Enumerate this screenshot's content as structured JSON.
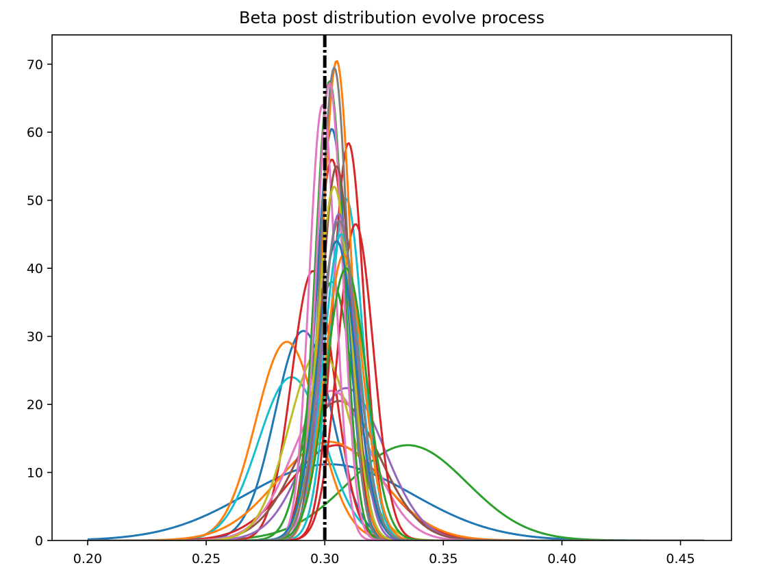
{
  "chart_data": {
    "type": "line",
    "title": "Beta post distribution evolve process",
    "xlabel": "",
    "ylabel": "",
    "xlim": [
      0.185,
      0.4715
    ],
    "ylim": [
      0,
      74.3
    ],
    "x_ticks": [
      0.2,
      0.25,
      0.3,
      0.35,
      0.4,
      0.45
    ],
    "x_tick_labels": [
      "0.20",
      "0.25",
      "0.30",
      "0.35",
      "0.40",
      "0.45"
    ],
    "y_ticks": [
      0,
      10,
      20,
      30,
      40,
      50,
      60,
      70
    ],
    "y_tick_labels": [
      "0",
      "10",
      "20",
      "30",
      "40",
      "50",
      "60",
      "70"
    ],
    "grid": false,
    "legend": "none",
    "reference_line": {
      "x": 0.3,
      "style": "dash-dot",
      "color": "#000000"
    },
    "x_range": [
      0.2,
      0.46
    ],
    "series": [
      {
        "color": "#1f77b4",
        "peaks": [
          {
            "mu": 0.302,
            "sigma": 0.035,
            "height": 11.2
          }
        ]
      },
      {
        "color": "#2ca02c",
        "peaks": [
          {
            "mu": 0.335,
            "sigma": 0.025,
            "height": 14.0
          }
        ]
      },
      {
        "color": "#1f77b4",
        "peaks": [
          {
            "mu": 0.291,
            "sigma": 0.012,
            "height": 30.8
          }
        ]
      },
      {
        "color": "#ff7f0e",
        "peaks": [
          {
            "mu": 0.284,
            "sigma": 0.013,
            "height": 29.2
          }
        ]
      },
      {
        "color": "#17becf",
        "peaks": [
          {
            "mu": 0.286,
            "sigma": 0.014,
            "height": 24.0
          }
        ]
      },
      {
        "color": "#d62728",
        "peaks": [
          {
            "mu": 0.295,
            "sigma": 0.009,
            "height": 39.6
          }
        ]
      },
      {
        "color": "#d62728",
        "peaks": [
          {
            "mu": 0.305,
            "sigma": 0.02,
            "height": 14.0
          }
        ]
      },
      {
        "color": "#ff7f0e",
        "peaks": [
          {
            "mu": 0.302,
            "sigma": 0.022,
            "height": 14.5
          }
        ]
      },
      {
        "color": "#9467bd",
        "peaks": [
          {
            "mu": 0.309,
            "sigma": 0.016,
            "height": 22.4
          }
        ]
      },
      {
        "color": "#8c564b",
        "peaks": [
          {
            "mu": 0.306,
            "sigma": 0.017,
            "height": 20.5
          }
        ]
      },
      {
        "color": "#e377c2",
        "peaks": [
          {
            "mu": 0.303,
            "sigma": 0.016,
            "height": 22.0
          }
        ]
      },
      {
        "color": "#bcbd22",
        "peaks": [
          {
            "mu": 0.298,
            "sigma": 0.013,
            "height": 28.0
          }
        ]
      },
      {
        "color": "#2ca02c",
        "peaks": [
          {
            "mu": 0.303,
            "sigma": 0.009,
            "height": 38.0
          }
        ]
      },
      {
        "color": "#d62728",
        "peaks": [
          {
            "mu": 0.31,
            "sigma": 0.0065,
            "height": 58.4
          }
        ]
      },
      {
        "color": "#17becf",
        "peaks": [
          {
            "mu": 0.309,
            "sigma": 0.007,
            "height": 50.2
          }
        ]
      },
      {
        "color": "#d62728",
        "peaks": [
          {
            "mu": 0.313,
            "sigma": 0.0075,
            "height": 46.5
          }
        ]
      },
      {
        "color": "#d62728",
        "peaks": [
          {
            "mu": 0.303,
            "sigma": 0.007,
            "height": 56.0
          }
        ]
      },
      {
        "color": "#1f77b4",
        "peaks": [
          {
            "mu": 0.303,
            "sigma": 0.0065,
            "height": 60.5
          }
        ]
      },
      {
        "color": "#2ca02c",
        "peaks": [
          {
            "mu": 0.302,
            "sigma": 0.006,
            "height": 67.5
          }
        ]
      },
      {
        "color": "#ff7f0e",
        "peaks": [
          {
            "mu": 0.305,
            "sigma": 0.006,
            "height": 70.5
          }
        ]
      },
      {
        "color": "#7f7f7f",
        "peaks": [
          {
            "mu": 0.304,
            "sigma": 0.0058,
            "height": 69.5
          }
        ]
      },
      {
        "color": "#e377c2",
        "peaks": [
          {
            "mu": 0.302,
            "sigma": 0.0055,
            "height": 67.2
          }
        ]
      },
      {
        "color": "#e377c2",
        "peaks": [
          {
            "mu": 0.299,
            "sigma": 0.0055,
            "height": 64.0
          }
        ]
      },
      {
        "color": "#8c564b",
        "peaks": [
          {
            "mu": 0.305,
            "sigma": 0.0065,
            "height": 55.0
          }
        ]
      },
      {
        "color": "#bcbd22",
        "peaks": [
          {
            "mu": 0.304,
            "sigma": 0.007,
            "height": 52.0
          }
        ]
      },
      {
        "color": "#9467bd",
        "peaks": [
          {
            "mu": 0.306,
            "sigma": 0.007,
            "height": 48.0
          }
        ]
      },
      {
        "color": "#17becf",
        "peaks": [
          {
            "mu": 0.307,
            "sigma": 0.0075,
            "height": 45.0
          }
        ]
      },
      {
        "color": "#ff7f0e",
        "peaks": [
          {
            "mu": 0.308,
            "sigma": 0.008,
            "height": 42.0
          }
        ]
      },
      {
        "color": "#1f77b4",
        "peaks": [
          {
            "mu": 0.305,
            "sigma": 0.008,
            "height": 44.0
          }
        ]
      },
      {
        "color": "#2ca02c",
        "peaks": [
          {
            "mu": 0.309,
            "sigma": 0.0085,
            "height": 40.0
          }
        ]
      },
      {
        "color": "#7f7f7f",
        "peaks": [
          {
            "mu": 0.306,
            "sigma": 0.0078,
            "height": 47.0
          }
        ]
      }
    ]
  }
}
